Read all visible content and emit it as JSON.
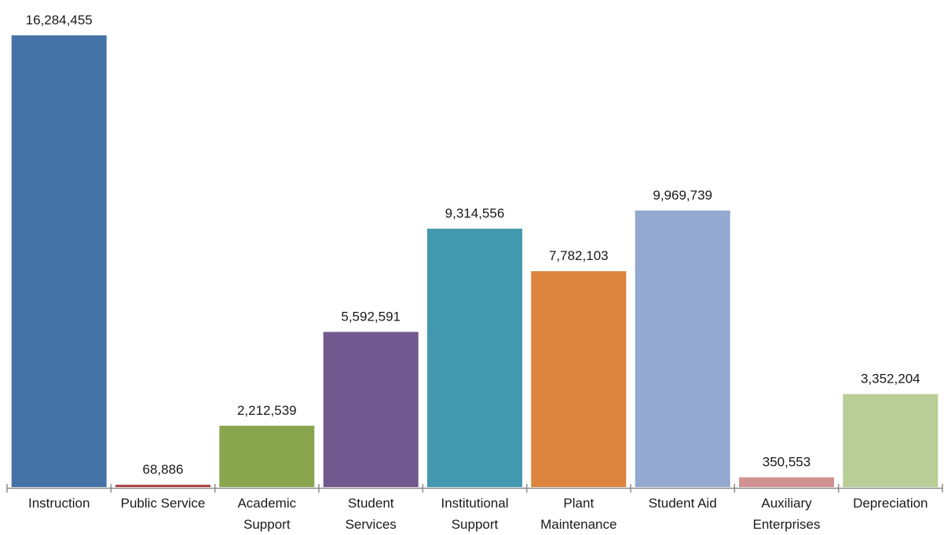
{
  "chart_data": {
    "type": "bar",
    "categories": [
      [
        "Instruction"
      ],
      [
        "Public Service"
      ],
      [
        "Academic",
        "Support"
      ],
      [
        "Student",
        "Services"
      ],
      [
        "Institutional",
        "Support"
      ],
      [
        "Plant",
        "Maintenance"
      ],
      [
        "Student Aid"
      ],
      [
        "Auxiliary",
        "Enterprises"
      ],
      [
        "Depreciation"
      ]
    ],
    "values": [
      16284455,
      68886,
      2212539,
      5592591,
      9314556,
      7782103,
      9969739,
      350553,
      3352204
    ],
    "value_labels": [
      "16,284,455",
      "68,886",
      "2,212,539",
      "5,592,591",
      "9,314,556",
      "7,782,103",
      "9,969,739",
      "350,553",
      "3,352,204"
    ],
    "colors": [
      "#4572a7",
      "#aa4643",
      "#89a54e",
      "#71588f",
      "#4198af",
      "#db843d",
      "#93a9cf",
      "#d19392",
      "#b9cd96"
    ],
    "ylim": [
      0,
      16284455
    ],
    "grid": false,
    "legend": "none"
  }
}
